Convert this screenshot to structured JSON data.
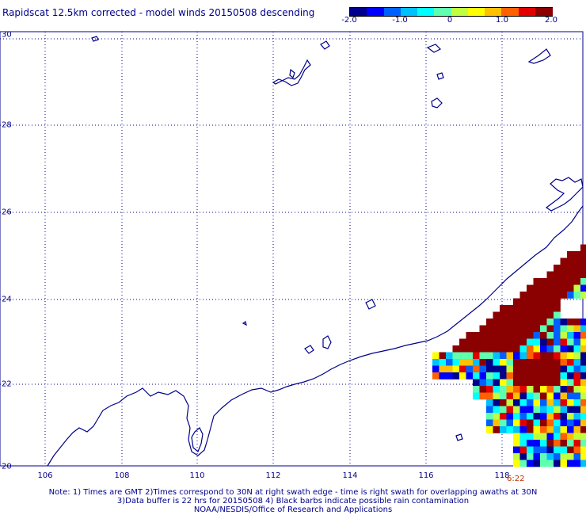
{
  "header": {
    "title": "Rapidscat 12.5km corrected - model winds 20150508 descending"
  },
  "colorbar": {
    "labels": [
      "-2.0",
      "-1.0",
      "0",
      "1.0",
      "2.0"
    ],
    "colors": [
      "#00008b",
      "#0000ff",
      "#0060ff",
      "#00c0ff",
      "#00ffff",
      "#60ffb0",
      "#c0ff40",
      "#ffff00",
      "#ffc000",
      "#ff6000",
      "#e00000",
      "#8b0000"
    ]
  },
  "map": {
    "lat_range": [
      20,
      30
    ],
    "lon_range": [
      105,
      120
    ],
    "lat_labels": [
      "20",
      "22",
      "24",
      "26",
      "28",
      "30"
    ],
    "lon_labels": [
      "106",
      "108",
      "110",
      "112",
      "114",
      "116",
      "118"
    ],
    "coast_color": "#00008b",
    "grid": "dotted",
    "time_tag": "6:22"
  },
  "footer": {
    "note1": "Note: 1) Times are GMT 2)Times correspond to 30N at right swath edge - time is right swath for overlapping awaths at 30N",
    "note2": "3)Data buffer is 22 hrs for 20150508 4) Black barbs indicate possible rain contamination",
    "note3": "NOAA/NESDIS/Office of Research and Applications"
  }
}
